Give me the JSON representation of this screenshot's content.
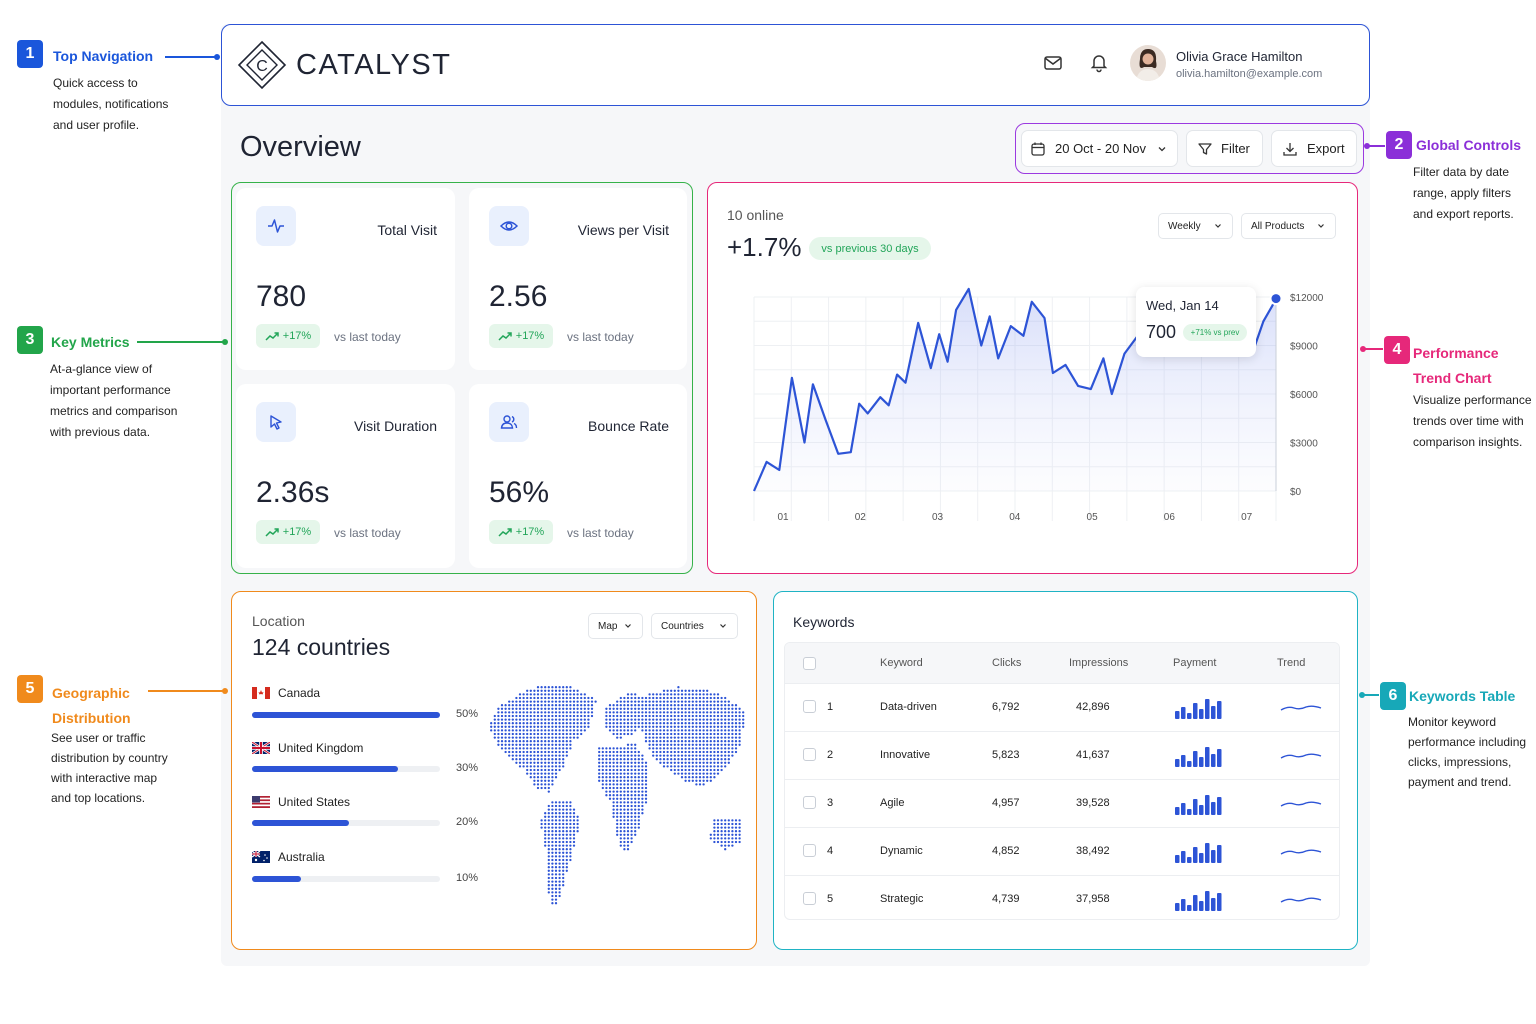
{
  "brand": {
    "name": "CATALYST",
    "logo_letter": "C"
  },
  "user": {
    "name": "Olivia Grace Hamilton",
    "email": "olivia.hamilton@example.com"
  },
  "page": {
    "title": "Overview"
  },
  "controls": {
    "date_range": "20 Oct - 20 Nov",
    "filter": "Filter",
    "export": "Export"
  },
  "metrics": [
    {
      "label": "Total Visit",
      "value": "780",
      "change": "+17%",
      "compare": "vs last today",
      "icon": "activity-icon"
    },
    {
      "label": "Views per Visit",
      "value": "2.56",
      "change": "+17%",
      "compare": "vs last today",
      "icon": "eye-icon"
    },
    {
      "label": "Visit Duration",
      "value": "2.36s",
      "change": "+17%",
      "compare": "vs last today",
      "icon": "cursor-icon"
    },
    {
      "label": "Bounce Rate",
      "value": "56%",
      "change": "+17%",
      "compare": "vs last today",
      "icon": "users-icon"
    }
  ],
  "trend": {
    "online": "10 online",
    "change": "+1.7%",
    "comparison": "vs previous 30 days",
    "period_select": "Weekly",
    "product_select": "All Products",
    "tooltip": {
      "date": "Wed, Jan 14",
      "value": "700",
      "badge": "+71% vs prev"
    }
  },
  "chart_data": {
    "type": "area",
    "x_ticks": [
      "01",
      "02",
      "03",
      "04",
      "05",
      "06",
      "07"
    ],
    "y_ticks": [
      "$0",
      "$3000",
      "$6000",
      "$9000",
      "$12000"
    ],
    "ylim": [
      0,
      12000
    ],
    "xlim": [
      0.8,
      7
    ],
    "points": [
      [
        0.8,
        0
      ],
      [
        0.95,
        1800
      ],
      [
        1.1,
        1300
      ],
      [
        1.25,
        7000
      ],
      [
        1.4,
        3000
      ],
      [
        1.5,
        6600
      ],
      [
        1.65,
        4400
      ],
      [
        1.8,
        2300
      ],
      [
        1.95,
        2400
      ],
      [
        2.05,
        5400
      ],
      [
        2.15,
        4800
      ],
      [
        2.3,
        5800
      ],
      [
        2.4,
        5300
      ],
      [
        2.5,
        7200
      ],
      [
        2.6,
        6700
      ],
      [
        2.75,
        10400
      ],
      [
        2.9,
        7600
      ],
      [
        3.0,
        9700
      ],
      [
        3.1,
        8000
      ],
      [
        3.2,
        11200
      ],
      [
        3.35,
        12500
      ],
      [
        3.5,
        9000
      ],
      [
        3.6,
        10800
      ],
      [
        3.7,
        8200
      ],
      [
        3.85,
        10200
      ],
      [
        4.0,
        9600
      ],
      [
        4.1,
        11700
      ],
      [
        4.25,
        10700
      ],
      [
        4.35,
        7300
      ],
      [
        4.5,
        7800
      ],
      [
        4.65,
        6500
      ],
      [
        4.8,
        6300
      ],
      [
        4.95,
        8200
      ],
      [
        5.05,
        6000
      ],
      [
        5.2,
        8500
      ],
      [
        5.4,
        9900
      ],
      [
        5.55,
        11200
      ],
      [
        5.7,
        11500
      ],
      [
        5.85,
        10500
      ],
      [
        6.0,
        10300
      ],
      [
        6.15,
        10400
      ],
      [
        6.3,
        10500
      ],
      [
        6.45,
        10100
      ],
      [
        6.6,
        10600
      ],
      [
        6.75,
        9000
      ],
      [
        6.85,
        10500
      ],
      [
        6.95,
        11400
      ],
      [
        7.0,
        11900
      ]
    ],
    "series": [
      {
        "name": "",
        "color": "#2d54d6"
      }
    ],
    "grid": true
  },
  "location": {
    "label": "Location",
    "count": "124 countries",
    "view_select": "Map",
    "scope_select": "Countries",
    "countries": [
      {
        "name": "Canada",
        "percent": "50%",
        "value": 0.5
      },
      {
        "name": "United Kingdom",
        "percent": "30%",
        "value": 0.3
      },
      {
        "name": "United States",
        "percent": "20%",
        "value": 0.2
      },
      {
        "name": "Australia",
        "percent": "10%",
        "value": 0.1
      }
    ]
  },
  "keywords": {
    "title": "Keywords",
    "columns": [
      "Keyword",
      "Clicks",
      "Impressions",
      "Payment",
      "Trend"
    ],
    "rows": [
      {
        "rank": "1",
        "keyword": "Data-driven",
        "clicks": "6,792",
        "impressions": "42,896"
      },
      {
        "rank": "2",
        "keyword": "Innovative",
        "clicks": "5,823",
        "impressions": "41,637"
      },
      {
        "rank": "3",
        "keyword": "Agile",
        "clicks": "4,957",
        "impressions": "39,528"
      },
      {
        "rank": "4",
        "keyword": "Dynamic",
        "clicks": "4,852",
        "impressions": "38,492"
      },
      {
        "rank": "5",
        "keyword": "Strategic",
        "clicks": "4,739",
        "impressions": "37,958"
      }
    ]
  },
  "annotations": [
    {
      "num": "1",
      "title": "Top Navigation",
      "desc": [
        "Quick access to",
        "modules, notifications",
        "and user profile."
      ],
      "color": "#1a56db"
    },
    {
      "num": "2",
      "title": "Global Controls",
      "desc": [
        "Filter data by date",
        "range, apply filters",
        "and export reports."
      ],
      "color": "#8b2fd8"
    },
    {
      "num": "3",
      "title": "Key Metrics",
      "desc": [
        "At-a-glance view of",
        "important performance",
        "metrics and comparison",
        "with previous data."
      ],
      "color": "#22a54a"
    },
    {
      "num": "4",
      "title": "Performance Trend Chart",
      "desc": [
        "Visualize performance",
        "trends over time with",
        "comparison insights."
      ],
      "color": "#e6287a"
    },
    {
      "num": "5",
      "title": "Geographic Distribution",
      "desc": [
        "See user or traffic",
        "distribution by country",
        "with interactive map",
        "and top locations."
      ],
      "color": "#f08a1c"
    },
    {
      "num": "6",
      "title": "Keywords Table",
      "desc": [
        "Monitor keyword",
        "performance including",
        "clicks, impressions,",
        "payment and trend."
      ],
      "color": "#17a8b8"
    }
  ]
}
